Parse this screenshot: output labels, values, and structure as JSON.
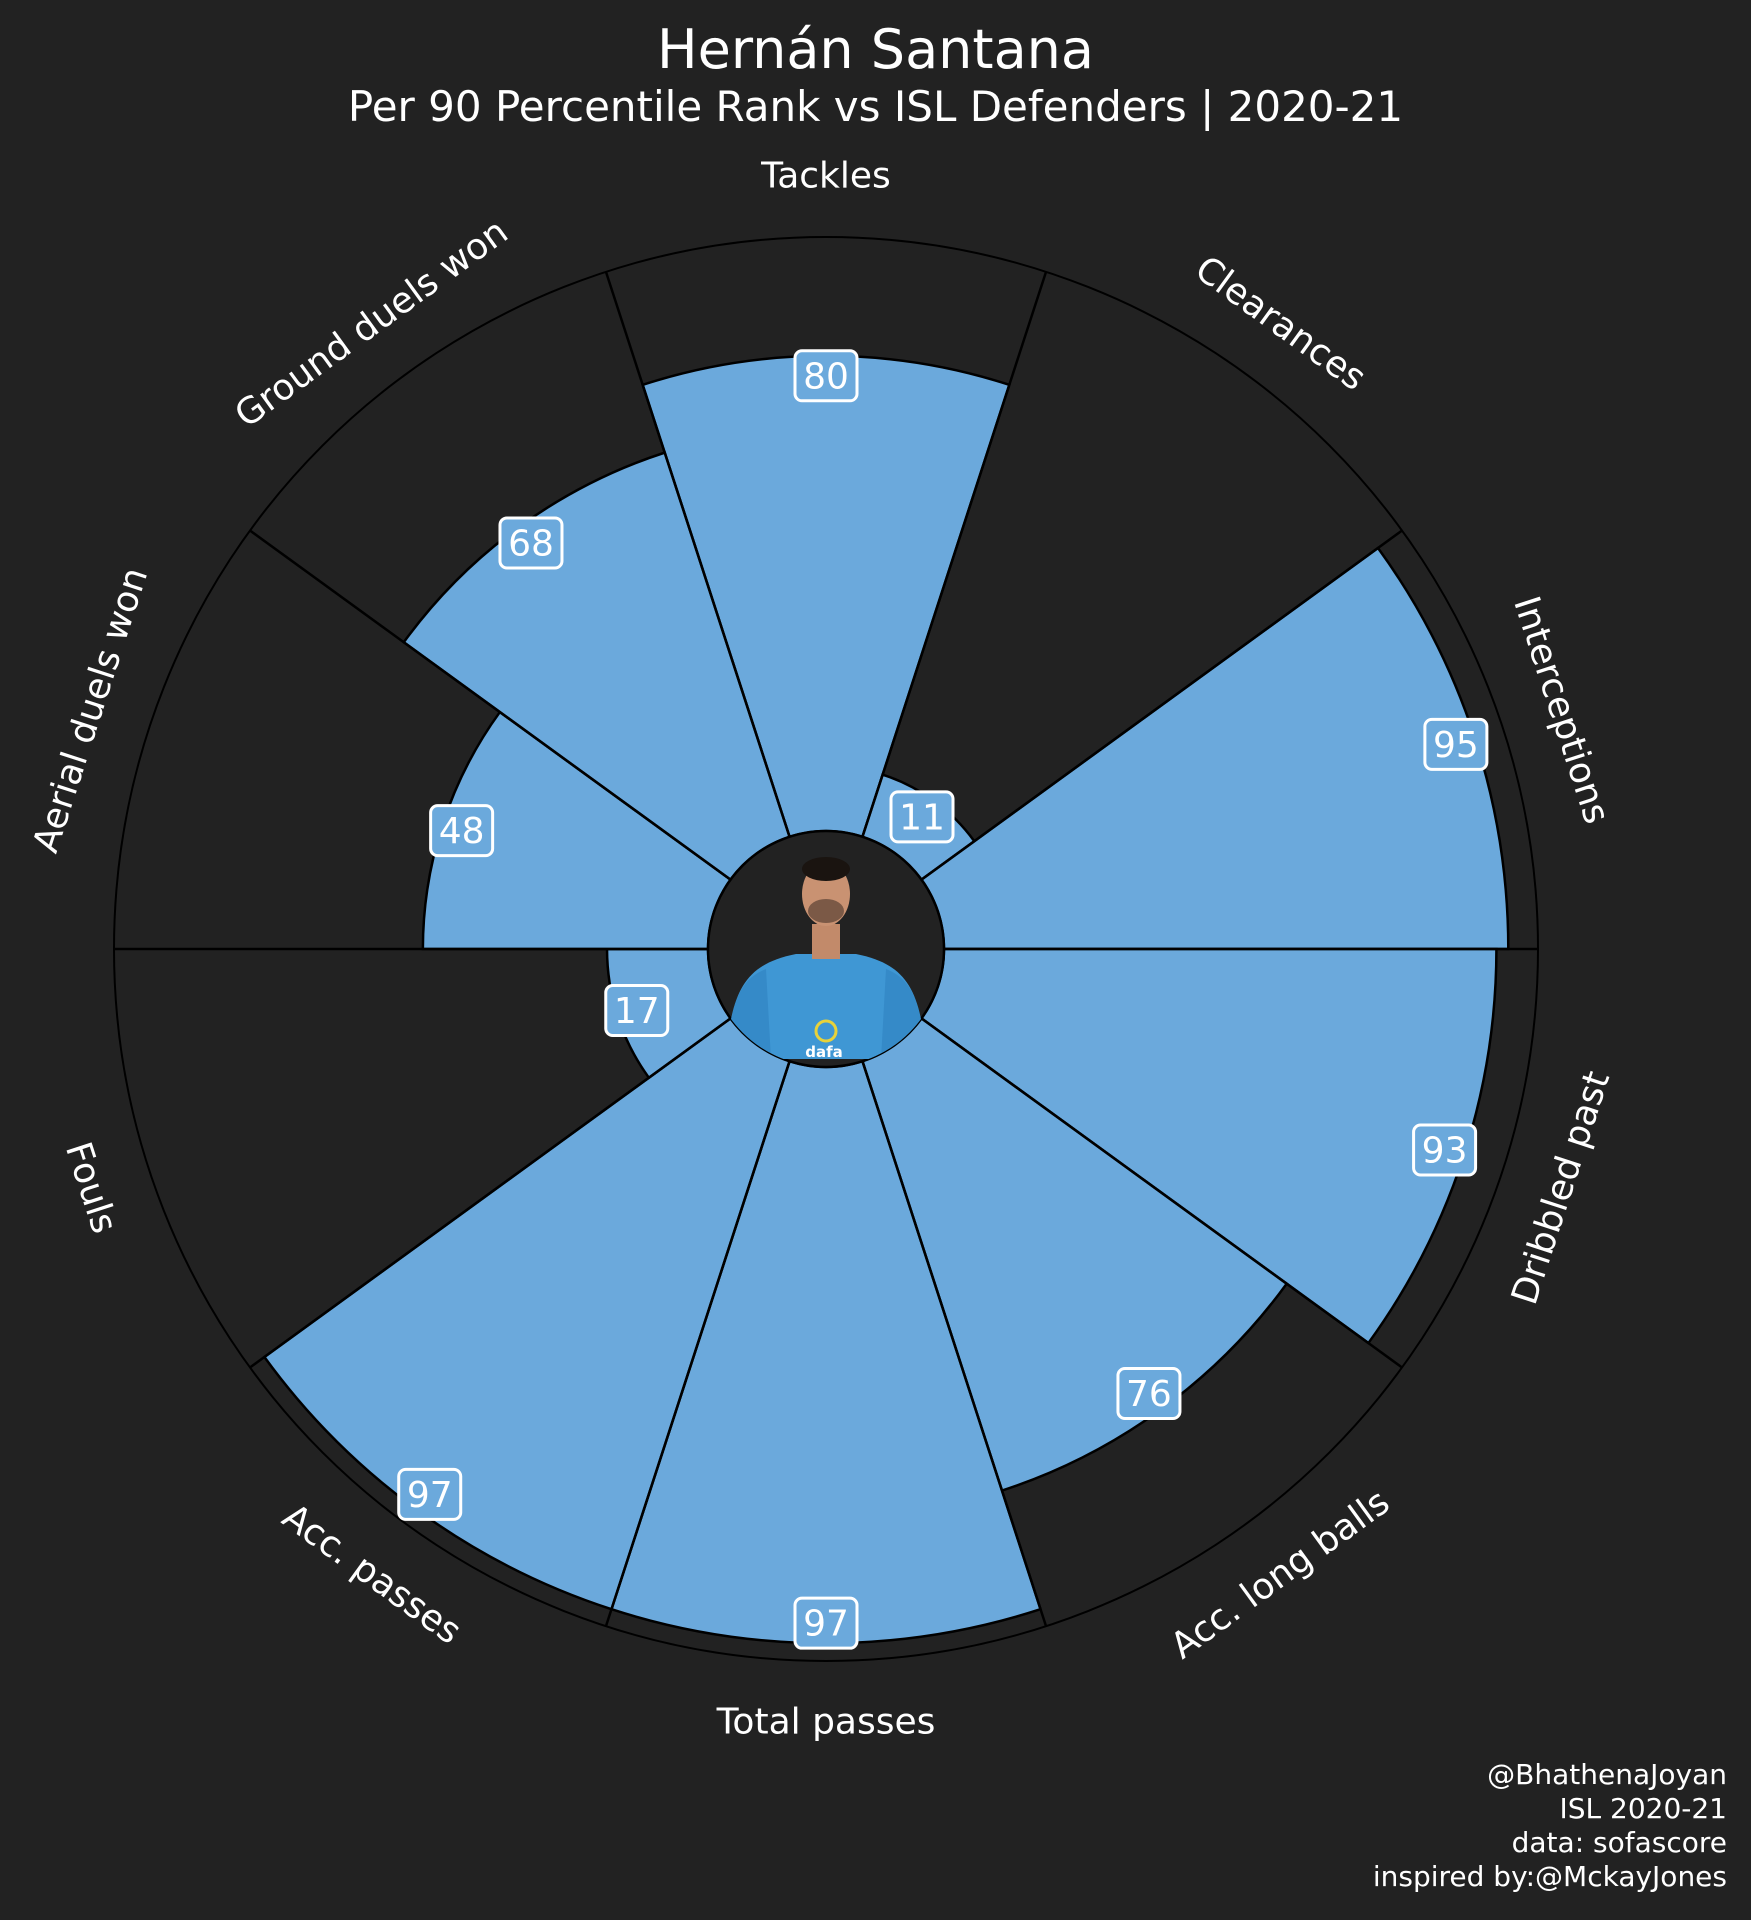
{
  "header": {
    "title": "Hernán Santana",
    "subtitle": "Per 90 Percentile Rank vs ISL Defenders | 2020-21"
  },
  "credits": {
    "line1": "@BhathenaJoyan",
    "line2": "ISL 2020-21",
    "line3": "data: sofascore",
    "line4": "inspired by:@MckayJones"
  },
  "colors": {
    "background": "#222222",
    "bar_fill": "#6ba9dc",
    "edge": "#000000",
    "text": "#ffffff"
  },
  "center_image": "player-photo",
  "chart_data": {
    "type": "polar-bar",
    "title": "Hernán Santana",
    "subtitle": "Per 90 Percentile Rank vs ISL Defenders | 2020-21",
    "rlim": [
      0,
      100
    ],
    "categories": [
      "Tackles",
      "Clearances",
      "Interceptions",
      "Dribbled past",
      "Acc. long balls",
      "Total passes",
      "Acc. passes",
      "Fouls",
      "Aerial duels won",
      "Ground duels won"
    ],
    "values": [
      80,
      11,
      95,
      93,
      76,
      97,
      97,
      17,
      48,
      68
    ],
    "value_labels": [
      "80",
      "11",
      "95",
      "93",
      "76",
      "97",
      "97",
      "17",
      "48",
      "68"
    ]
  }
}
